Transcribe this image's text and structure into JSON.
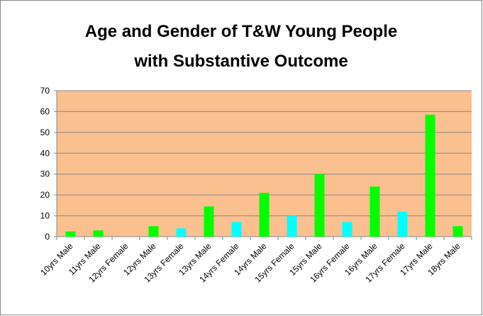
{
  "chart_data": {
    "type": "bar",
    "title": [
      "Age and Gender of T&W Young People",
      "with Substantive Outcome"
    ],
    "categories": [
      "10yrs Male",
      "11yrs Male",
      "12yrs Female",
      "12yrs Male",
      "13yrs Female",
      "13yrs Male",
      "14yrs Female",
      "14yrs Male",
      "15yrs Female",
      "15yrs Male",
      "16yrs Female",
      "16yrs Male",
      "17yrs Female",
      "17yrs Male",
      "18yrs Male"
    ],
    "values": [
      2.5,
      3,
      0,
      5,
      4,
      14.5,
      7,
      21,
      10,
      30,
      7,
      24,
      12,
      58.5,
      5
    ],
    "colors": [
      "#00ff00",
      "#00ff00",
      "#00ffff",
      "#00ff00",
      "#00ffff",
      "#00ff00",
      "#00ffff",
      "#00ff00",
      "#00ffff",
      "#00ff00",
      "#00ffff",
      "#00ff00",
      "#00ffff",
      "#00ff00",
      "#00ff00"
    ],
    "plot_background": "#fac090",
    "ylim": [
      0,
      70
    ],
    "yticks": [
      0,
      10,
      20,
      30,
      40,
      50,
      60,
      70
    ],
    "grid": true
  }
}
